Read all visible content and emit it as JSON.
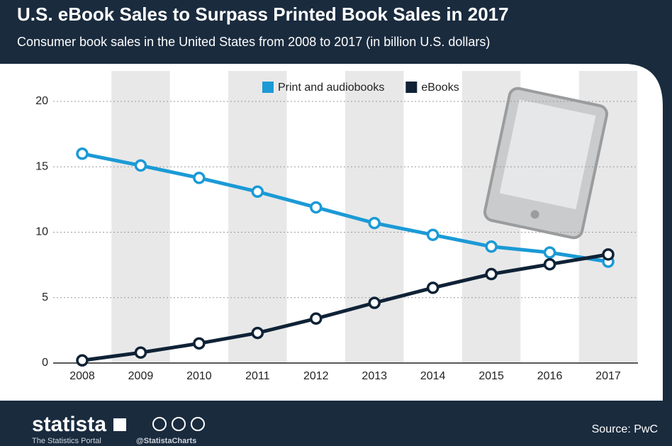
{
  "chart_data": {
    "type": "line",
    "title": "U.S. eBook Sales to Surpass Printed Book Sales in 2017",
    "subtitle": "Consumer book sales in the United States from 2008 to 2017 (in billion U.S. dollars)",
    "categories": [
      "2008",
      "2009",
      "2010",
      "2011",
      "2012",
      "2013",
      "2014",
      "2015",
      "2016",
      "2017"
    ],
    "series": [
      {
        "name": "Print and audiobooks",
        "color": "#1b9ad6",
        "values": [
          16.0,
          15.1,
          14.15,
          13.1,
          11.9,
          10.7,
          9.8,
          8.9,
          8.45,
          7.75
        ]
      },
      {
        "name": "eBooks",
        "color": "#0f2236",
        "values": [
          0.2,
          0.8,
          1.5,
          2.3,
          3.4,
          4.6,
          5.75,
          6.8,
          7.55,
          8.3
        ]
      }
    ],
    "ylim": [
      0,
      20
    ],
    "yticks": [
      0,
      5,
      10,
      15,
      20
    ],
    "grid": true
  },
  "footer": {
    "brand": "statista",
    "tagline": "The Statistics Portal",
    "handle": "@StatistaCharts",
    "source": "Source: PwC"
  }
}
